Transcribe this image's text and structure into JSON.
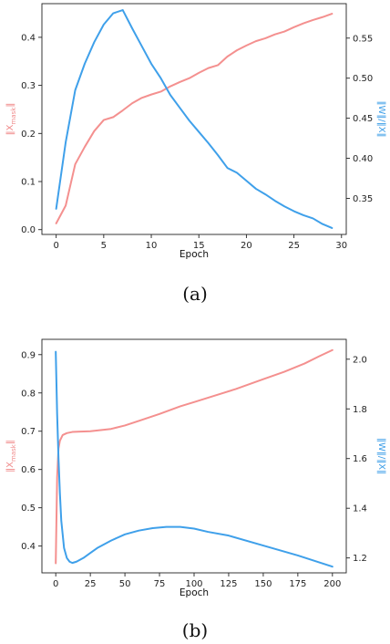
{
  "colors": {
    "left": "#f4908f",
    "right": "#3fa0ea",
    "axis": "#222222"
  },
  "chart_data": [
    {
      "type": "line",
      "caption": "(a)",
      "xlabel": "Epoch",
      "ylabel_left": "‖X_mask‖",
      "ylabel_right": "‖W‖/‖X‖",
      "xlim": [
        -1.5,
        30.5
      ],
      "ylim_left": [
        -0.01,
        0.47
      ],
      "ylim_right": [
        0.305,
        0.593
      ],
      "xticks": [
        0,
        5,
        10,
        15,
        20,
        25,
        30
      ],
      "yticks_left": [
        0.0,
        0.1,
        0.2,
        0.3,
        0.4
      ],
      "yticks_right": [
        0.35,
        0.4,
        0.45,
        0.5,
        0.55
      ],
      "series": [
        {
          "axis": "left",
          "x": [
            0,
            1,
            2,
            3,
            4,
            5,
            6,
            7,
            8,
            9,
            10,
            11,
            12,
            13,
            14,
            15,
            16,
            17,
            18,
            19,
            20,
            21,
            22,
            23,
            24,
            25,
            26,
            27,
            28,
            29
          ],
          "values": [
            0.013,
            0.05,
            0.136,
            0.172,
            0.205,
            0.228,
            0.234,
            0.248,
            0.263,
            0.274,
            0.281,
            0.287,
            0.298,
            0.307,
            0.315,
            0.326,
            0.336,
            0.342,
            0.36,
            0.373,
            0.383,
            0.392,
            0.398,
            0.406,
            0.412,
            0.421,
            0.429,
            0.436,
            0.442,
            0.449
          ]
        },
        {
          "axis": "right",
          "x": [
            0,
            1,
            2,
            3,
            4,
            5,
            6,
            7,
            8,
            9,
            10,
            11,
            12,
            13,
            14,
            15,
            16,
            17,
            18,
            19,
            20,
            21,
            22,
            23,
            24,
            25,
            26,
            27,
            28,
            29
          ],
          "values": [
            0.337,
            0.42,
            0.485,
            0.518,
            0.545,
            0.567,
            0.581,
            0.585,
            0.562,
            0.54,
            0.518,
            0.5,
            0.479,
            0.463,
            0.447,
            0.433,
            0.419,
            0.404,
            0.388,
            0.382,
            0.372,
            0.362,
            0.355,
            0.347,
            0.34,
            0.334,
            0.329,
            0.325,
            0.318,
            0.313
          ]
        }
      ]
    },
    {
      "type": "line",
      "caption": "(b)",
      "xlabel": "Epoch",
      "ylabel_left": "‖X_mask‖",
      "ylabel_right": "‖W‖/‖X‖",
      "xlim": [
        -10,
        210
      ],
      "ylim_left": [
        0.33,
        0.94
      ],
      "ylim_right": [
        1.14,
        2.08
      ],
      "xticks": [
        0,
        25,
        50,
        75,
        100,
        125,
        150,
        175,
        200
      ],
      "yticks_left": [
        0.4,
        0.5,
        0.6,
        0.7,
        0.8,
        0.9
      ],
      "yticks_right": [
        1.2,
        1.4,
        1.6,
        1.8,
        2.0
      ],
      "series": [
        {
          "axis": "left",
          "x": [
            0,
            1,
            2,
            3,
            5,
            8,
            12,
            18,
            25,
            40,
            50,
            60,
            75,
            90,
            100,
            115,
            130,
            150,
            165,
            180,
            190,
            200
          ],
          "values": [
            0.355,
            0.58,
            0.655,
            0.675,
            0.69,
            0.695,
            0.698,
            0.699,
            0.7,
            0.706,
            0.715,
            0.727,
            0.745,
            0.765,
            0.776,
            0.793,
            0.81,
            0.836,
            0.855,
            0.877,
            0.895,
            0.912
          ]
        },
        {
          "axis": "right",
          "x": [
            0,
            1,
            2,
            3,
            4,
            6,
            8,
            10,
            12,
            15,
            20,
            25,
            30,
            40,
            50,
            60,
            70,
            80,
            90,
            100,
            110,
            125,
            150,
            175,
            200
          ],
          "values": [
            2.03,
            1.78,
            1.6,
            1.46,
            1.35,
            1.24,
            1.2,
            1.185,
            1.18,
            1.185,
            1.2,
            1.22,
            1.24,
            1.27,
            1.295,
            1.31,
            1.32,
            1.325,
            1.325,
            1.318,
            1.305,
            1.29,
            1.25,
            1.21,
            1.165
          ]
        }
      ]
    }
  ]
}
